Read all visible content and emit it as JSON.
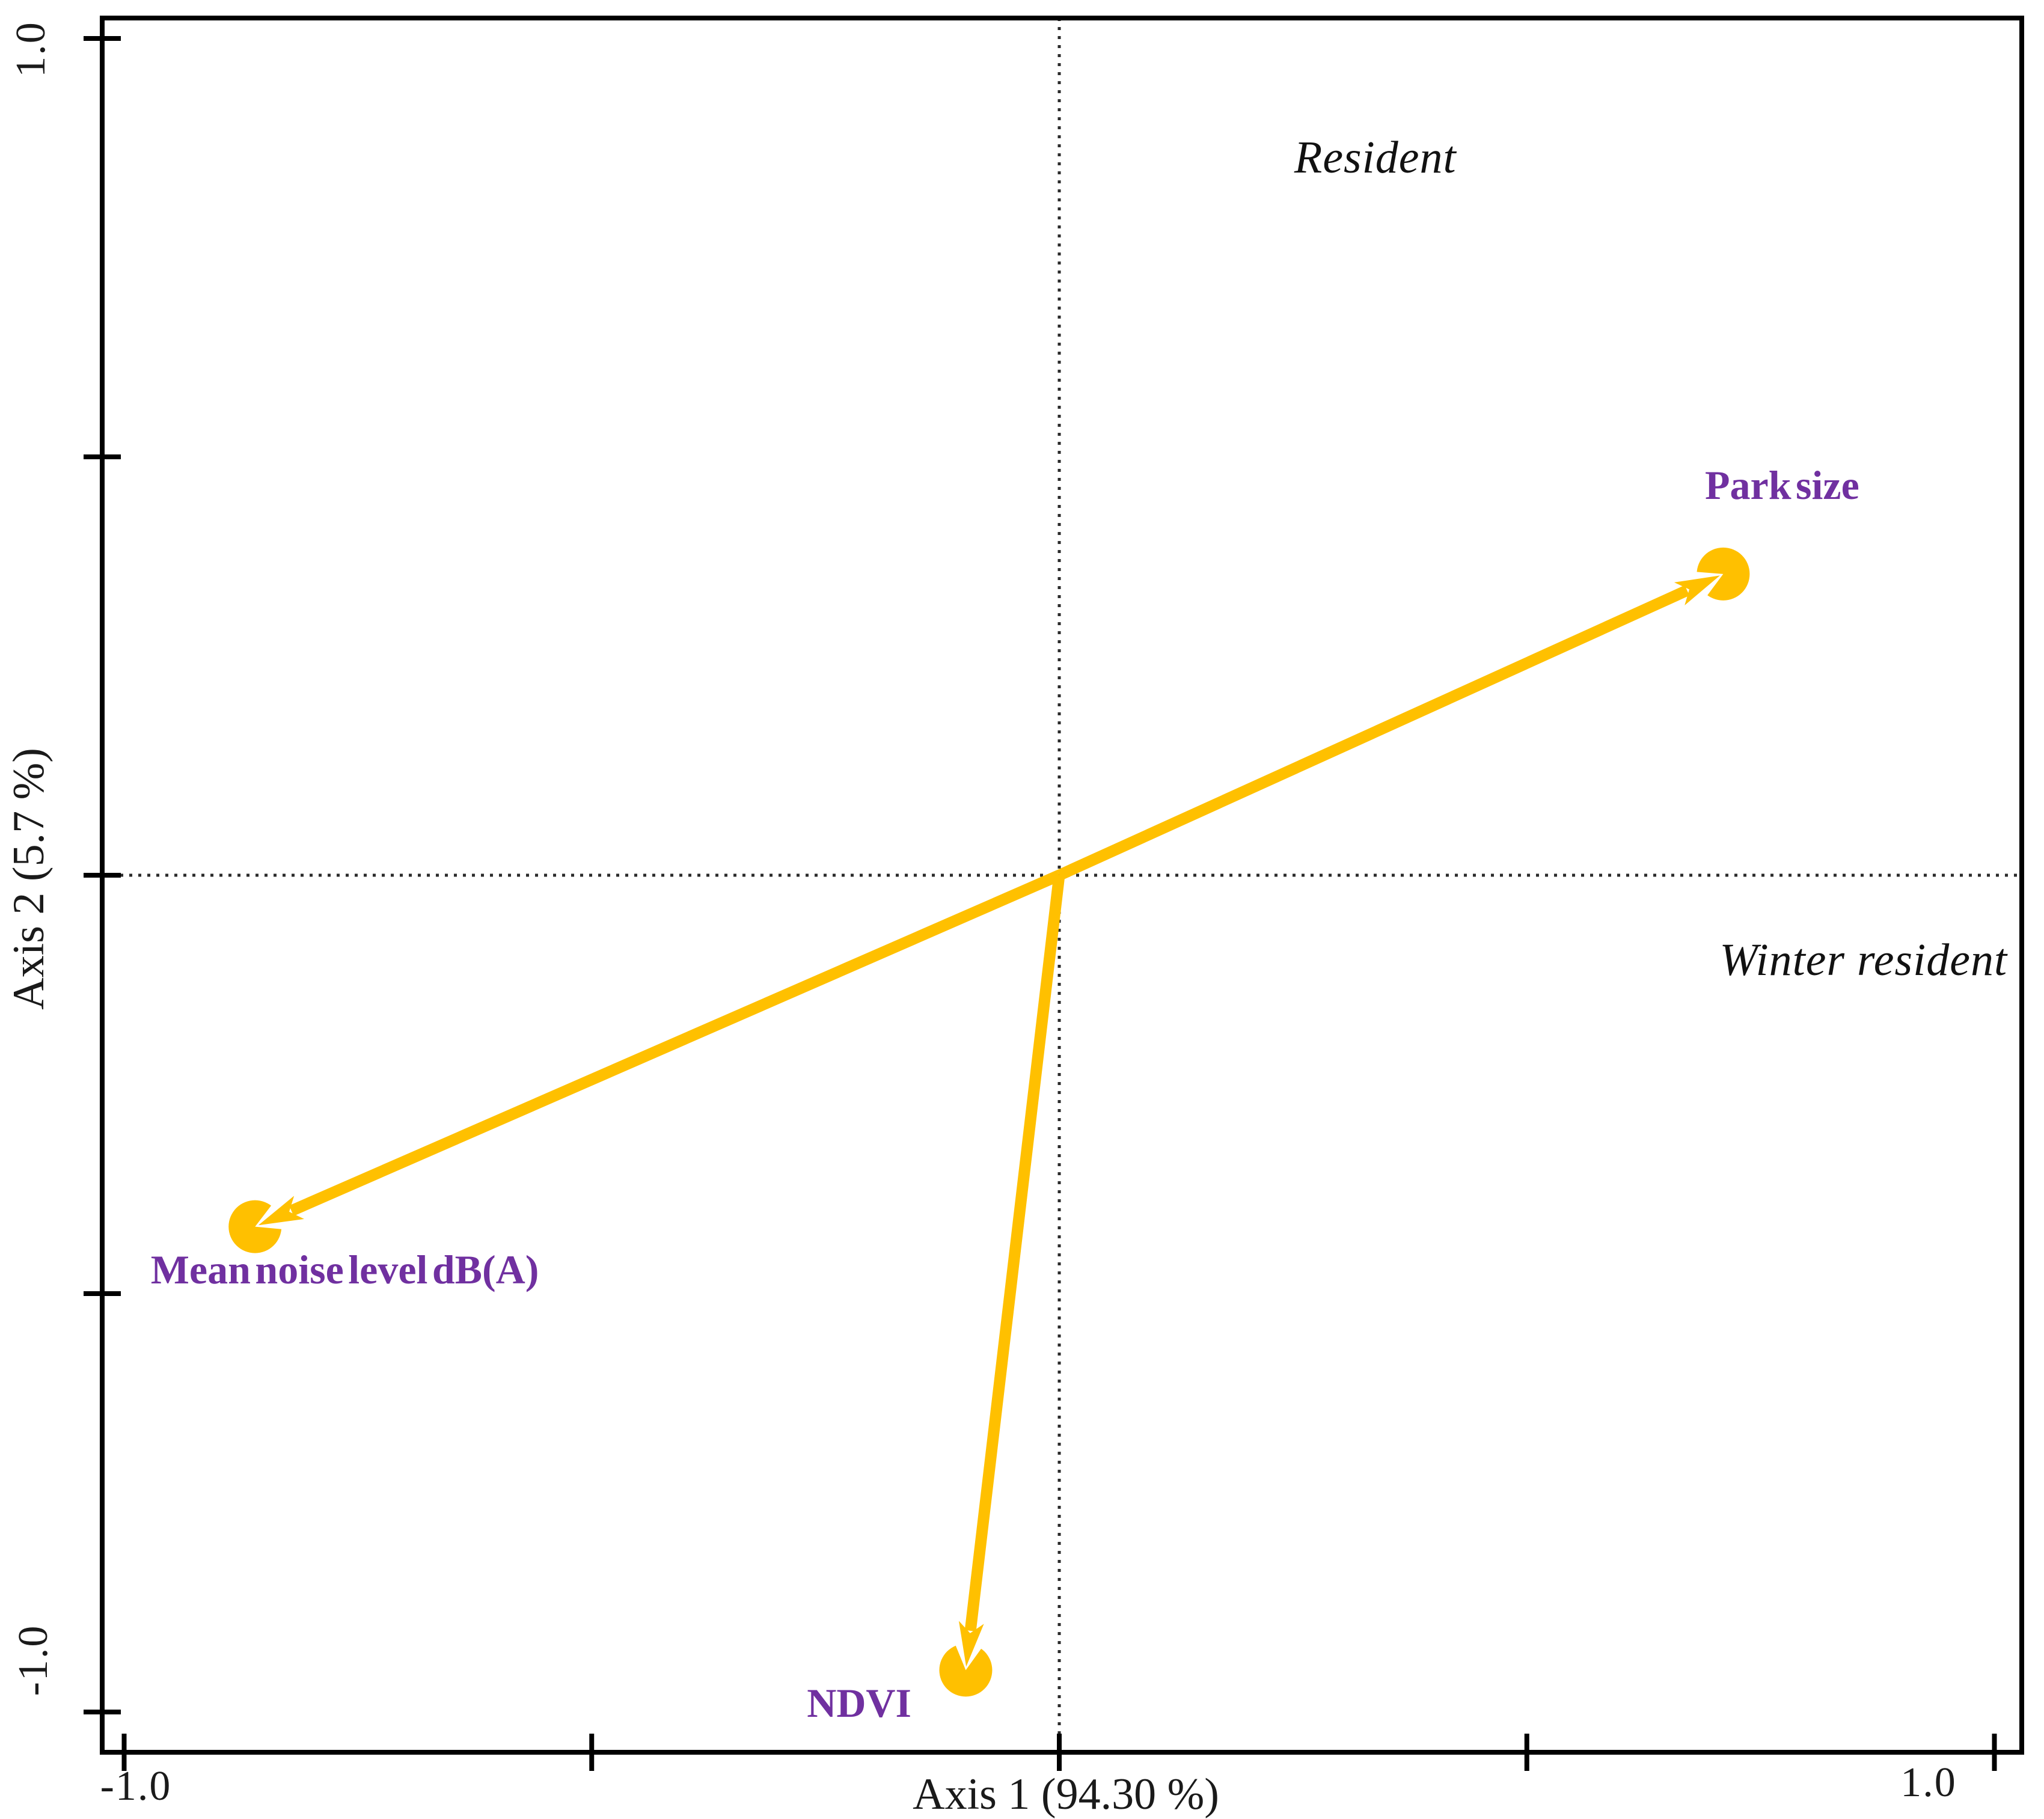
{
  "figure": {
    "background": "#ffffff"
  },
  "chart_data": {
    "type": "scatter",
    "subtype": "ordination-biplot",
    "xlabel": "Axis 1 (94.30 %)",
    "ylabel": "Axis 2 (5.7 %)",
    "xlim": [
      -1.0,
      1.0
    ],
    "ylim": [
      -1.0,
      1.0
    ],
    "x_ticks": [
      -1.0,
      -0.5,
      0.0,
      0.5,
      1.0
    ],
    "y_ticks": [
      -1.0,
      -0.5,
      0.0,
      0.5,
      1.0
    ],
    "x_tick_labels_shown": {
      "min": "-1.0",
      "max": "1.0"
    },
    "y_tick_labels_shown": {
      "min": "-1.0",
      "max": "1.0"
    },
    "grid": "dotted zero crosshair",
    "legend": "none",
    "arrows": [
      {
        "name": "Park size",
        "x": 0.71,
        "y": 0.36,
        "label_x": 0.773,
        "label_y": 0.466
      },
      {
        "name": "Mean noise level dB(A)",
        "x": -0.86,
        "y": -0.42,
        "label_x": -0.764,
        "label_y": -0.471
      },
      {
        "name": "NDVI",
        "x": -0.1,
        "y": -0.95,
        "label_x": -0.214,
        "label_y": -0.989
      }
    ],
    "annotations": [
      {
        "text": "Resident",
        "x": 0.338,
        "y": 0.858
      },
      {
        "text": "Winter resident",
        "x": 0.86,
        "y": -0.101
      }
    ],
    "colors": {
      "arrow": "#FFC000",
      "variable_label": "#7030A0",
      "annotation": "#111111",
      "axis": "#000000",
      "crosshair": "#2b2b2b"
    }
  }
}
